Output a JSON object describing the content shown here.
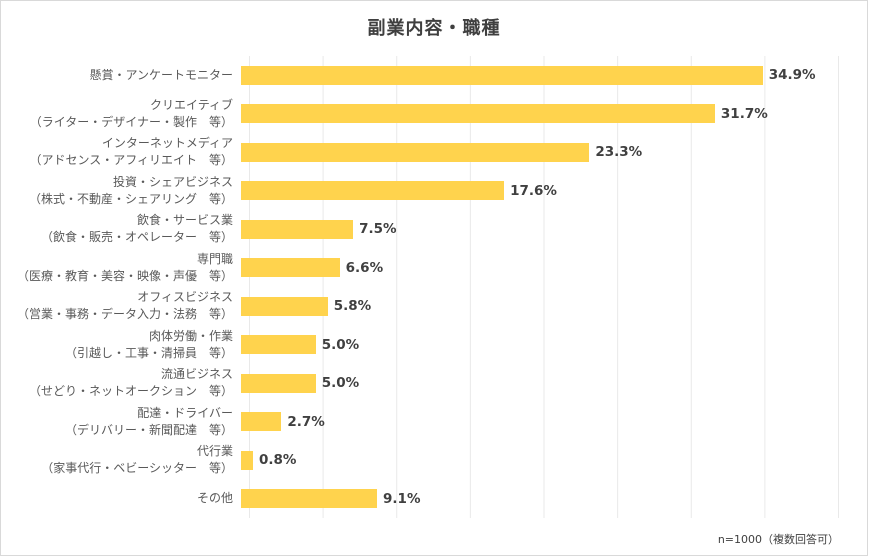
{
  "title": "副業内容・職種",
  "footnote": "n=1000（複数回答可）",
  "colors": {
    "bar": "#ffd34d",
    "title_text": "#3f3f3f",
    "category_text": "#595959",
    "value_text": "#404040",
    "gridline": "#e9e9e9"
  },
  "chart_data": {
    "type": "bar",
    "orientation": "horizontal",
    "title": "副業内容・職種",
    "xlabel": "",
    "ylabel": "",
    "xlim": [
      0,
      40
    ],
    "grid_interval": 5,
    "legend": "none",
    "categories": [
      {
        "line1": "懸賞・アンケートモニター",
        "line2": ""
      },
      {
        "line1": "クリエイティブ",
        "line2": "（ライター・デザイナー・製作　等）"
      },
      {
        "line1": "インターネットメディア",
        "line2": "（アドセンス・アフィリエイト　等）"
      },
      {
        "line1": "投資・シェアビジネス",
        "line2": "（株式・不動産・シェアリング　等）"
      },
      {
        "line1": "飲食・サービス業",
        "line2": "（飲食・販売・オペレーター　等）"
      },
      {
        "line1": "専門職",
        "line2": "（医療・教育・美容・映像・声優　等）"
      },
      {
        "line1": "オフィスビジネス",
        "line2": "（営業・事務・データ入力・法務　等）"
      },
      {
        "line1": "肉体労働・作業",
        "line2": "（引越し・工事・清掃員　等）"
      },
      {
        "line1": "流通ビジネス",
        "line2": "（せどり・ネットオークション　等）"
      },
      {
        "line1": "配達・ドライバー",
        "line2": "（デリバリー・新聞配達　等）"
      },
      {
        "line1": "代行業",
        "line2": "（家事代行・ベビーシッター　等）"
      },
      {
        "line1": "その他",
        "line2": ""
      }
    ],
    "values": [
      34.9,
      31.7,
      23.3,
      17.6,
      7.5,
      6.6,
      5.8,
      5.0,
      5.0,
      2.7,
      0.8,
      9.1
    ],
    "value_labels": [
      "34.9%",
      "31.7%",
      "23.3%",
      "17.6%",
      "7.5%",
      "6.6%",
      "5.8%",
      "5.0%",
      "5.0%",
      "2.7%",
      "0.8%",
      "9.1%"
    ]
  }
}
